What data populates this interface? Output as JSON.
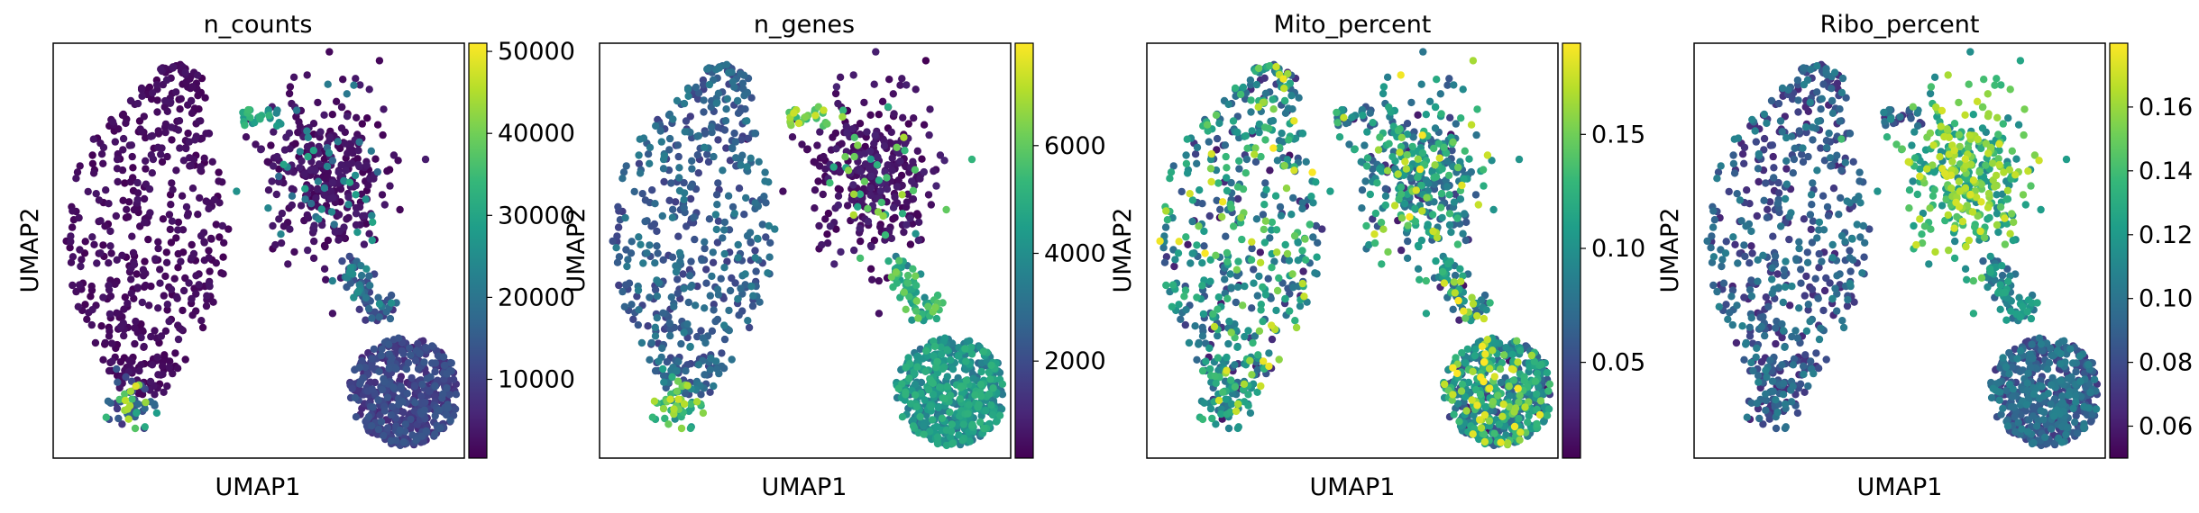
{
  "figure": {
    "colormap": "viridis",
    "colormap_stops": [
      "#440154",
      "#482878",
      "#3e4989",
      "#31688e",
      "#26828e",
      "#1f9e89",
      "#35b779",
      "#6ece58",
      "#b5de2b",
      "#fde725"
    ]
  },
  "chart_data": [
    {
      "type": "scatter",
      "title": "n_counts",
      "xlabel": "UMAP1",
      "ylabel": "UMAP2",
      "grid": false,
      "colorbar": {
        "range": [
          400,
          51000
        ],
        "ticks": [
          10000,
          20000,
          30000,
          40000,
          50000
        ],
        "tick_labels": [
          "10000",
          "20000",
          "30000",
          "40000",
          "50000"
        ]
      }
    },
    {
      "type": "scatter",
      "title": "n_genes",
      "xlabel": "UMAP1",
      "ylabel": "UMAP2",
      "grid": false,
      "colorbar": {
        "range": [
          200,
          7900
        ],
        "ticks": [
          2000,
          4000,
          6000
        ],
        "tick_labels": [
          "2000",
          "4000",
          "6000"
        ]
      }
    },
    {
      "type": "scatter",
      "title": "Mito_percent",
      "xlabel": "UMAP1",
      "ylabel": "UMAP2",
      "grid": false,
      "colorbar": {
        "range": [
          0.008,
          0.19
        ],
        "ticks": [
          0.05,
          0.1,
          0.15
        ],
        "tick_labels": [
          "0.05",
          "0.10",
          "0.15"
        ]
      }
    },
    {
      "type": "scatter",
      "title": "Ribo_percent",
      "xlabel": "UMAP1",
      "ylabel": "UMAP2",
      "grid": false,
      "colorbar": {
        "range": [
          0.05,
          0.18
        ],
        "ticks": [
          0.06,
          0.08,
          0.1,
          0.12,
          0.14,
          0.16
        ],
        "tick_labels": [
          "0.06",
          "0.08",
          "0.10",
          "0.12",
          "0.14",
          "0.16"
        ]
      }
    }
  ]
}
